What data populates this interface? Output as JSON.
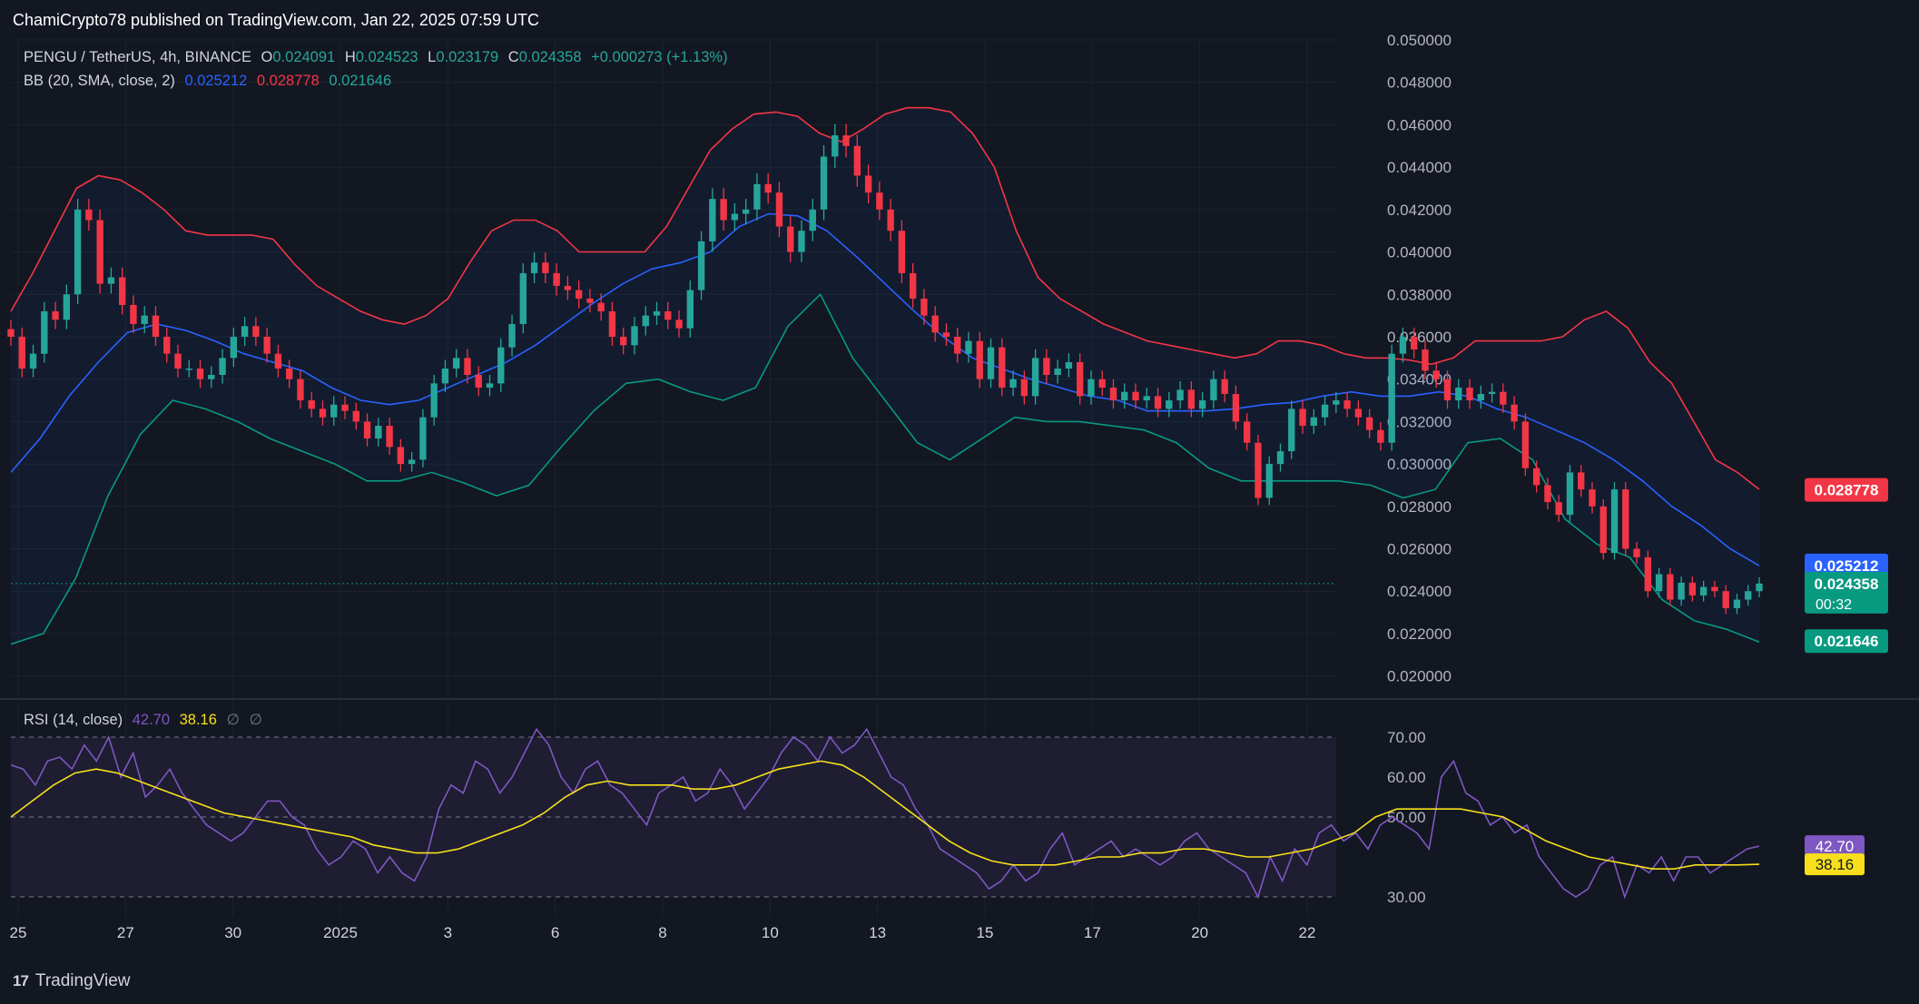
{
  "header": {
    "published": "ChamiCrypto78 published on TradingView.com, Jan 22, 2025 07:59 UTC"
  },
  "legend": {
    "symbol": "PENGU / TetherUS, 4h, BINANCE",
    "o_label": "O",
    "o": "0.024091",
    "h_label": "H",
    "h": "0.024523",
    "l_label": "L",
    "l": "0.023179",
    "c_label": "C",
    "c": "0.024358",
    "change": "+0.000273 (+1.13%)",
    "bb_label": "BB (20, SMA, close, 2)",
    "bb_mid": "0.025212",
    "bb_upper": "0.028778",
    "bb_lower": "0.021646",
    "rsi_label": "RSI (14, close)",
    "rsi_value": "42.70",
    "rsi_ma": "38.16",
    "rsi_n1": "∅",
    "rsi_n2": "∅"
  },
  "footer": {
    "brand": "TradingView"
  },
  "colors": {
    "up": "#26a69a",
    "down": "#f23645",
    "bb_mid": "#2962ff",
    "bb_upper": "#f23645",
    "bb_lower": "#089981",
    "rsi": "#7e57c2",
    "rsi_ma": "#f7e01b"
  },
  "chart_data": [
    {
      "type": "candlestick",
      "symbol": "PENGU/USDT",
      "timeframe": "4h",
      "y_range": [
        0.019,
        0.05
      ],
      "y_ticks": [
        "0.050000",
        "0.048000",
        "0.046000",
        "0.044000",
        "0.042000",
        "0.040000",
        "0.038000",
        "0.036000",
        "0.034000",
        "0.032000",
        "0.030000",
        "0.028000",
        "0.026000",
        "0.024000",
        "0.022000",
        "0.020000"
      ],
      "x_ticks": [
        "25",
        "27",
        "30",
        "2025",
        "3",
        "6",
        "8",
        "10",
        "13",
        "15",
        "17",
        "20",
        "22"
      ],
      "price_tags": [
        {
          "label": "0.028778",
          "value": 0.028778,
          "color": "#f23645"
        },
        {
          "label": "0.025212",
          "value": 0.025212,
          "color": "#2962ff"
        },
        {
          "label": "0.024358",
          "value": 0.024358,
          "color": "#089981",
          "sub": "00:32"
        },
        {
          "label": "0.021646",
          "value": 0.021646,
          "color": "#089981"
        }
      ],
      "close": [
        0.036,
        0.0345,
        0.0352,
        0.0372,
        0.0368,
        0.038,
        0.042,
        0.0415,
        0.0385,
        0.0388,
        0.0375,
        0.0366,
        0.037,
        0.036,
        0.0352,
        0.0345,
        0.0345,
        0.034,
        0.0342,
        0.035,
        0.036,
        0.0365,
        0.036,
        0.0352,
        0.0345,
        0.034,
        0.033,
        0.0326,
        0.0322,
        0.0328,
        0.0325,
        0.032,
        0.0312,
        0.0318,
        0.0308,
        0.03,
        0.0302,
        0.0322,
        0.0338,
        0.0345,
        0.035,
        0.0342,
        0.0336,
        0.0338,
        0.0355,
        0.0366,
        0.039,
        0.0395,
        0.039,
        0.0384,
        0.0382,
        0.0378,
        0.0376,
        0.0372,
        0.036,
        0.0356,
        0.0365,
        0.037,
        0.0372,
        0.0368,
        0.0364,
        0.0382,
        0.0405,
        0.0425,
        0.0415,
        0.0418,
        0.042,
        0.0432,
        0.0428,
        0.0412,
        0.04,
        0.041,
        0.042,
        0.0445,
        0.0455,
        0.045,
        0.0436,
        0.0428,
        0.042,
        0.041,
        0.039,
        0.0378,
        0.037,
        0.0362,
        0.036,
        0.0352,
        0.0358,
        0.034,
        0.0355,
        0.0336,
        0.034,
        0.0332,
        0.035,
        0.0342,
        0.0345,
        0.0348,
        0.0332,
        0.034,
        0.0336,
        0.033,
        0.0334,
        0.033,
        0.0332,
        0.0326,
        0.033,
        0.0335,
        0.0326,
        0.033,
        0.034,
        0.0333,
        0.032,
        0.031,
        0.0284,
        0.03,
        0.0306,
        0.0326,
        0.0318,
        0.0322,
        0.0328,
        0.033,
        0.0326,
        0.0322,
        0.0316,
        0.031,
        0.0352,
        0.036,
        0.0354,
        0.0344,
        0.034,
        0.033,
        0.0336,
        0.033,
        0.0333,
        0.0334,
        0.0328,
        0.032,
        0.0298,
        0.029,
        0.0282,
        0.0276,
        0.0296,
        0.0288,
        0.028,
        0.0258,
        0.0288,
        0.026,
        0.0256,
        0.024,
        0.0248,
        0.0236,
        0.0244,
        0.0238,
        0.0242,
        0.024,
        0.0232,
        0.0236,
        0.024,
        0.02436
      ],
      "bb_upper": [
        0.0372,
        0.039,
        0.041,
        0.043,
        0.0436,
        0.0434,
        0.0428,
        0.042,
        0.041,
        0.0408,
        0.0408,
        0.0408,
        0.0406,
        0.0394,
        0.0384,
        0.0378,
        0.0372,
        0.0368,
        0.0366,
        0.037,
        0.0378,
        0.0395,
        0.041,
        0.0415,
        0.0415,
        0.041,
        0.04,
        0.04,
        0.04,
        0.04,
        0.0412,
        0.043,
        0.0448,
        0.0458,
        0.0465,
        0.0466,
        0.0464,
        0.0456,
        0.0452,
        0.0458,
        0.0465,
        0.0468,
        0.0468,
        0.0466,
        0.0456,
        0.044,
        0.041,
        0.0388,
        0.0378,
        0.0372,
        0.0366,
        0.0362,
        0.0358,
        0.0356,
        0.0354,
        0.0352,
        0.035,
        0.0352,
        0.0358,
        0.0358,
        0.0356,
        0.0352,
        0.035,
        0.035,
        0.0349,
        0.0347,
        0.035,
        0.0358,
        0.0358,
        0.0358,
        0.0358,
        0.036,
        0.0368,
        0.0372,
        0.0364,
        0.0348,
        0.0338,
        0.032,
        0.0302,
        0.0296,
        0.0288
      ],
      "bb_mid": [
        0.0296,
        0.0312,
        0.0332,
        0.0348,
        0.0362,
        0.0366,
        0.0363,
        0.0358,
        0.0352,
        0.0348,
        0.0344,
        0.0336,
        0.033,
        0.0328,
        0.033,
        0.0336,
        0.0342,
        0.0348,
        0.0356,
        0.0366,
        0.0376,
        0.0385,
        0.0392,
        0.0395,
        0.04,
        0.0412,
        0.0418,
        0.0417,
        0.041,
        0.0398,
        0.0385,
        0.0372,
        0.036,
        0.035,
        0.0345,
        0.034,
        0.0336,
        0.0332,
        0.033,
        0.0325,
        0.0325,
        0.0325,
        0.0326,
        0.0328,
        0.0329,
        0.0332,
        0.0334,
        0.0332,
        0.0332,
        0.0334,
        0.0332,
        0.0326,
        0.0322,
        0.0316,
        0.031,
        0.0302,
        0.0292,
        0.028,
        0.0271,
        0.026,
        0.0252
      ],
      "bb_lower": [
        0.0215,
        0.022,
        0.0246,
        0.0285,
        0.0314,
        0.033,
        0.0326,
        0.032,
        0.0312,
        0.0306,
        0.03,
        0.0292,
        0.0292,
        0.0296,
        0.0291,
        0.0285,
        0.029,
        0.0308,
        0.0325,
        0.0338,
        0.034,
        0.0334,
        0.033,
        0.0336,
        0.0365,
        0.038,
        0.035,
        0.033,
        0.031,
        0.0302,
        0.0312,
        0.0322,
        0.032,
        0.032,
        0.0318,
        0.0316,
        0.031,
        0.0298,
        0.0292,
        0.0292,
        0.0292,
        0.0292,
        0.029,
        0.0284,
        0.0288,
        0.031,
        0.0312,
        0.0302,
        0.0274,
        0.0262,
        0.0256,
        0.0236,
        0.0226,
        0.0222,
        0.0216
      ],
      "indicator": "BB (20, SMA, close, 2)"
    },
    {
      "type": "line",
      "name": "RSI (14, close)",
      "y_range": [
        25,
        75
      ],
      "y_ticks": [
        "70.00",
        "60.00",
        "50.00",
        "30.00"
      ],
      "bands": [
        30,
        50,
        70
      ],
      "series": [
        {
          "name": "RSI",
          "color": "#7e57c2",
          "values": [
            63,
            62,
            58,
            64,
            65,
            62,
            68,
            64,
            70,
            60,
            66,
            55,
            58,
            62,
            56,
            52,
            48,
            46,
            44,
            46,
            50,
            54,
            54,
            50,
            48,
            42,
            38,
            40,
            44,
            42,
            36,
            40,
            36,
            34,
            40,
            52,
            58,
            56,
            64,
            62,
            56,
            60,
            66,
            72,
            68,
            60,
            56,
            62,
            64,
            58,
            56,
            52,
            48,
            56,
            58,
            60,
            54,
            56,
            62,
            58,
            52,
            56,
            60,
            66,
            70,
            68,
            64,
            70,
            66,
            68,
            72,
            66,
            60,
            58,
            52,
            48,
            42,
            40,
            38,
            36,
            32,
            34,
            38,
            34,
            36,
            42,
            46,
            38,
            40,
            42,
            44,
            40,
            42,
            40,
            38,
            40,
            44,
            46,
            42,
            40,
            38,
            36,
            30,
            40,
            34,
            42,
            38,
            46,
            48,
            44,
            46,
            42,
            48,
            50,
            48,
            46,
            42,
            60,
            64,
            56,
            54,
            48,
            50,
            46,
            48,
            40,
            36,
            32,
            30,
            32,
            38,
            40,
            30,
            38,
            36,
            40,
            34,
            40,
            40,
            36,
            38,
            40,
            42,
            42.7
          ]
        },
        {
          "name": "RSI MA",
          "color": "#f7e01b",
          "values": [
            50,
            54,
            58,
            61,
            62,
            61,
            59,
            57,
            55,
            53,
            51,
            50,
            49,
            48,
            47,
            46,
            45,
            43,
            42,
            41,
            41,
            42,
            44,
            46,
            48,
            51,
            55,
            58,
            59,
            58,
            58,
            58,
            57,
            57,
            58,
            60,
            62,
            63,
            64,
            63,
            60,
            56,
            52,
            48,
            44,
            41,
            39,
            38,
            38,
            38,
            39,
            40,
            40,
            41,
            41,
            42,
            42,
            41,
            40,
            40,
            41,
            42,
            44,
            46,
            50,
            52,
            52,
            52,
            52,
            51,
            50,
            47,
            44,
            42,
            40,
            39,
            38,
            37,
            37,
            38,
            38,
            38,
            38.16
          ]
        }
      ]
    }
  ]
}
